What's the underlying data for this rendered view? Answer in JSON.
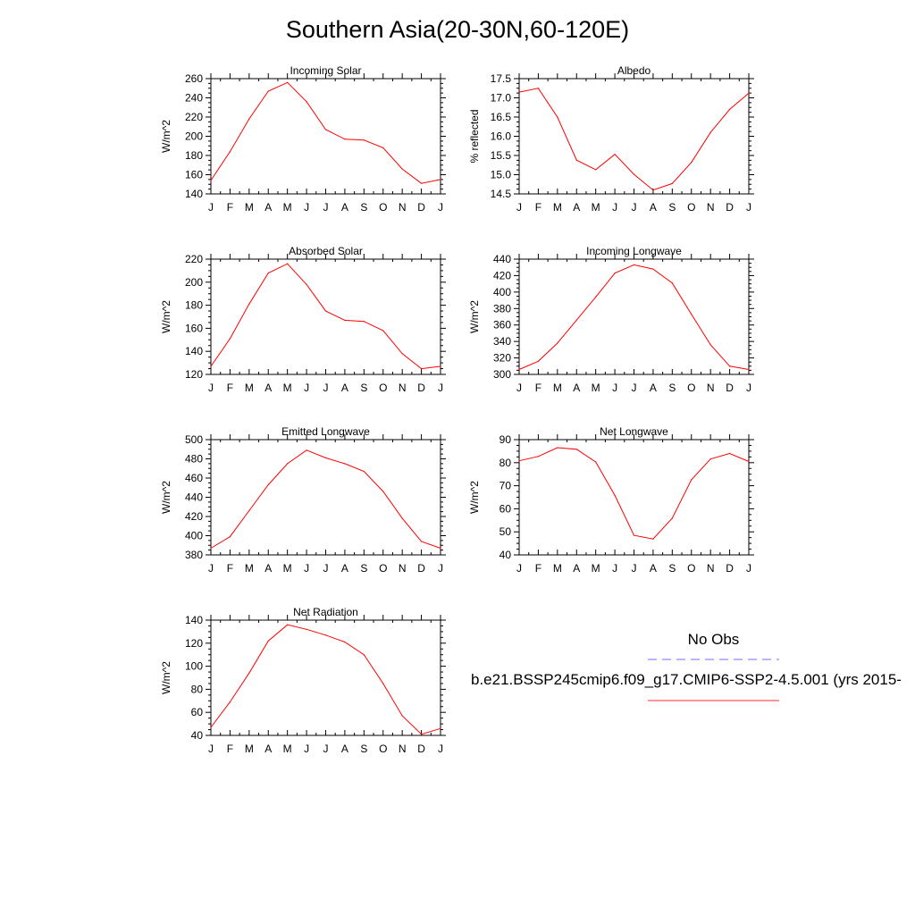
{
  "title": "Southern Asia(20-30N,60-120E)",
  "legend": {
    "obs_label": "No Obs",
    "obs_color": "#6f6fff",
    "case_label": "b.e21.BSSP245cmip6.f09_g17.CMIP6-SSP2-4.5.001 (yrs 2015-",
    "case_color": "#ff2a2a"
  },
  "line_color": "#ff0000",
  "chart_data": [
    {
      "type": "line",
      "title": "Incoming Solar",
      "ylabel": "W/m^2",
      "categories": [
        "J",
        "F",
        "M",
        "A",
        "M",
        "J",
        "J",
        "A",
        "S",
        "O",
        "N",
        "D",
        "J"
      ],
      "ylim": [
        140,
        260
      ],
      "yticks": [
        140,
        160,
        180,
        200,
        220,
        240,
        260
      ],
      "ytick_labels": [
        "140",
        "160",
        "180",
        "200",
        "220",
        "240",
        "260"
      ],
      "values": [
        154,
        184,
        218,
        247,
        256,
        236,
        207,
        197,
        196,
        188,
        166,
        151,
        155
      ]
    },
    {
      "type": "line",
      "title": "Albedo",
      "ylabel": "% reflected",
      "categories": [
        "J",
        "F",
        "M",
        "A",
        "M",
        "J",
        "J",
        "A",
        "S",
        "O",
        "N",
        "D",
        "J"
      ],
      "ylim": [
        14.5,
        17.5
      ],
      "yticks": [
        14.5,
        15.0,
        15.5,
        16.0,
        16.5,
        17.0,
        17.5
      ],
      "ytick_labels": [
        "14.5",
        "15.0",
        "15.5",
        "16.0",
        "16.5",
        "17.0",
        "17.5"
      ],
      "values": [
        17.15,
        17.25,
        16.5,
        15.38,
        15.13,
        15.53,
        15.01,
        14.6,
        14.77,
        15.32,
        16.1,
        16.7,
        17.12
      ]
    },
    {
      "type": "line",
      "title": "Absorbed Solar",
      "ylabel": "W/m^2",
      "categories": [
        "J",
        "F",
        "M",
        "A",
        "M",
        "J",
        "J",
        "A",
        "S",
        "O",
        "N",
        "D",
        "J"
      ],
      "ylim": [
        120,
        220
      ],
      "yticks": [
        120,
        140,
        160,
        180,
        200,
        220
      ],
      "ytick_labels": [
        "120",
        "140",
        "160",
        "180",
        "200",
        "220"
      ],
      "values": [
        127,
        151,
        181,
        208,
        216,
        198,
        175,
        167,
        166,
        158,
        138,
        125,
        127
      ]
    },
    {
      "type": "line",
      "title": "Incoming Longwave",
      "ylabel": "W/m^2",
      "categories": [
        "J",
        "F",
        "M",
        "A",
        "M",
        "J",
        "J",
        "A",
        "S",
        "O",
        "N",
        "D",
        "J"
      ],
      "ylim": [
        300,
        440
      ],
      "yticks": [
        300,
        320,
        340,
        360,
        380,
        400,
        420,
        440
      ],
      "ytick_labels": [
        "300",
        "320",
        "340",
        "360",
        "380",
        "400",
        "420",
        "440"
      ],
      "values": [
        306,
        316,
        338,
        366,
        394,
        423,
        433,
        428,
        411,
        373,
        336,
        310,
        306
      ]
    },
    {
      "type": "line",
      "title": "Emitted Longwave",
      "ylabel": "W/m^2",
      "categories": [
        "J",
        "F",
        "M",
        "A",
        "M",
        "J",
        "J",
        "A",
        "S",
        "O",
        "N",
        "D",
        "J"
      ],
      "ylim": [
        380,
        500
      ],
      "yticks": [
        380,
        400,
        420,
        440,
        460,
        480,
        500
      ],
      "ytick_labels": [
        "380",
        "400",
        "420",
        "440",
        "460",
        "480",
        "500"
      ],
      "values": [
        387,
        399,
        426,
        453,
        475,
        489,
        481,
        475,
        467,
        446,
        418,
        394,
        387
      ]
    },
    {
      "type": "line",
      "title": "Net Longwave",
      "ylabel": "W/m^2",
      "categories": [
        "J",
        "F",
        "M",
        "A",
        "M",
        "J",
        "J",
        "A",
        "S",
        "O",
        "N",
        "D",
        "J"
      ],
      "ylim": [
        40,
        90
      ],
      "yticks": [
        40,
        50,
        60,
        70,
        80,
        90
      ],
      "ytick_labels": [
        "40",
        "50",
        "60",
        "70",
        "80",
        "90"
      ],
      "values": [
        80.8,
        82.7,
        86.5,
        85.8,
        80.3,
        65.8,
        48.5,
        46.9,
        55.9,
        72.6,
        81.6,
        84.0,
        80.5
      ]
    },
    {
      "type": "line",
      "title": "Net Radiation",
      "ylabel": "W/m^2",
      "categories": [
        "J",
        "F",
        "M",
        "A",
        "M",
        "J",
        "J",
        "A",
        "S",
        "O",
        "N",
        "D",
        "J"
      ],
      "ylim": [
        40,
        140
      ],
      "yticks": [
        40,
        60,
        80,
        100,
        120,
        140
      ],
      "ytick_labels": [
        "40",
        "60",
        "80",
        "100",
        "120",
        "140"
      ],
      "values": [
        47,
        69,
        94,
        122,
        136,
        132,
        127,
        121,
        110,
        85,
        57,
        41,
        46
      ]
    }
  ]
}
